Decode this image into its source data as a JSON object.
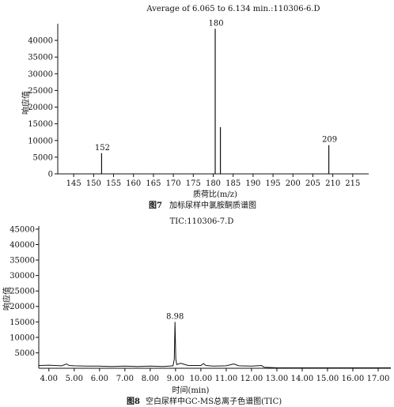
{
  "chart_data": [
    {
      "type": "bar",
      "title": "Average of 6.065 to 6.134 min.:110306-6.D",
      "xlabel": "质荷比(m/z)",
      "ylabel": "响应值",
      "xlim": [
        141,
        219
      ],
      "ylim": [
        0,
        45000
      ],
      "xticks": [
        145,
        150,
        155,
        160,
        165,
        170,
        175,
        180,
        185,
        190,
        195,
        200,
        205,
        210,
        215
      ],
      "yticks": [
        0,
        5000,
        10000,
        15000,
        20000,
        25000,
        30000,
        35000,
        40000
      ],
      "peaks": [
        {
          "x": 152,
          "y": 6200,
          "label": "152"
        },
        {
          "x": 180.5,
          "y": 43500,
          "label": "180"
        },
        {
          "x": 181.8,
          "y": 14000,
          "label": ""
        },
        {
          "x": 209,
          "y": 8600,
          "label": "209"
        }
      ],
      "caption": {
        "fig": "图7",
        "text": "加标尿样中氯胺酮质谱图"
      }
    },
    {
      "type": "line",
      "title": "TIC:110306-7.D",
      "xlabel": "时间(min)",
      "ylabel": "响应值",
      "xlim": [
        3.6,
        17.5
      ],
      "ylim": [
        0,
        46000
      ],
      "xticks": [
        "4.00",
        "5.00",
        "6.00",
        "7.00",
        "8.00",
        "9.00",
        "10.00",
        "11.00",
        "12.00",
        "13.00",
        "14.00",
        "15.00",
        "16.00",
        "17.00"
      ],
      "yticks": [
        5000,
        10000,
        15000,
        20000,
        25000,
        30000,
        35000,
        40000,
        45000
      ],
      "series": [
        {
          "x": [
            3.6,
            4.0,
            4.5,
            4.7,
            4.8,
            5.0,
            5.5,
            6.0,
            6.5,
            7.0,
            7.5,
            8.0,
            8.5,
            8.9,
            8.95,
            8.98,
            9.01,
            9.05,
            9.2,
            9.5,
            10.0,
            10.1,
            10.2,
            10.5,
            11.0,
            11.3,
            11.5,
            12.0,
            12.4,
            12.5,
            13.0,
            14.0,
            15.0,
            16.0,
            17.0,
            17.5
          ],
          "y": [
            900,
            1000,
            800,
            1400,
            900,
            800,
            700,
            700,
            600,
            700,
            600,
            700,
            600,
            800,
            3000,
            15000,
            3000,
            1200,
            1600,
            900,
            900,
            1500,
            900,
            700,
            800,
            1400,
            800,
            700,
            900,
            300,
            150,
            150,
            150,
            150,
            150,
            150
          ]
        }
      ],
      "peak_labels": [
        {
          "x": 8.98,
          "y": 15000,
          "label": "8.98"
        }
      ],
      "caption": {
        "fig": "图8",
        "text": "空白尿样中GC-MS总离子色谱图(TIC)"
      }
    }
  ]
}
